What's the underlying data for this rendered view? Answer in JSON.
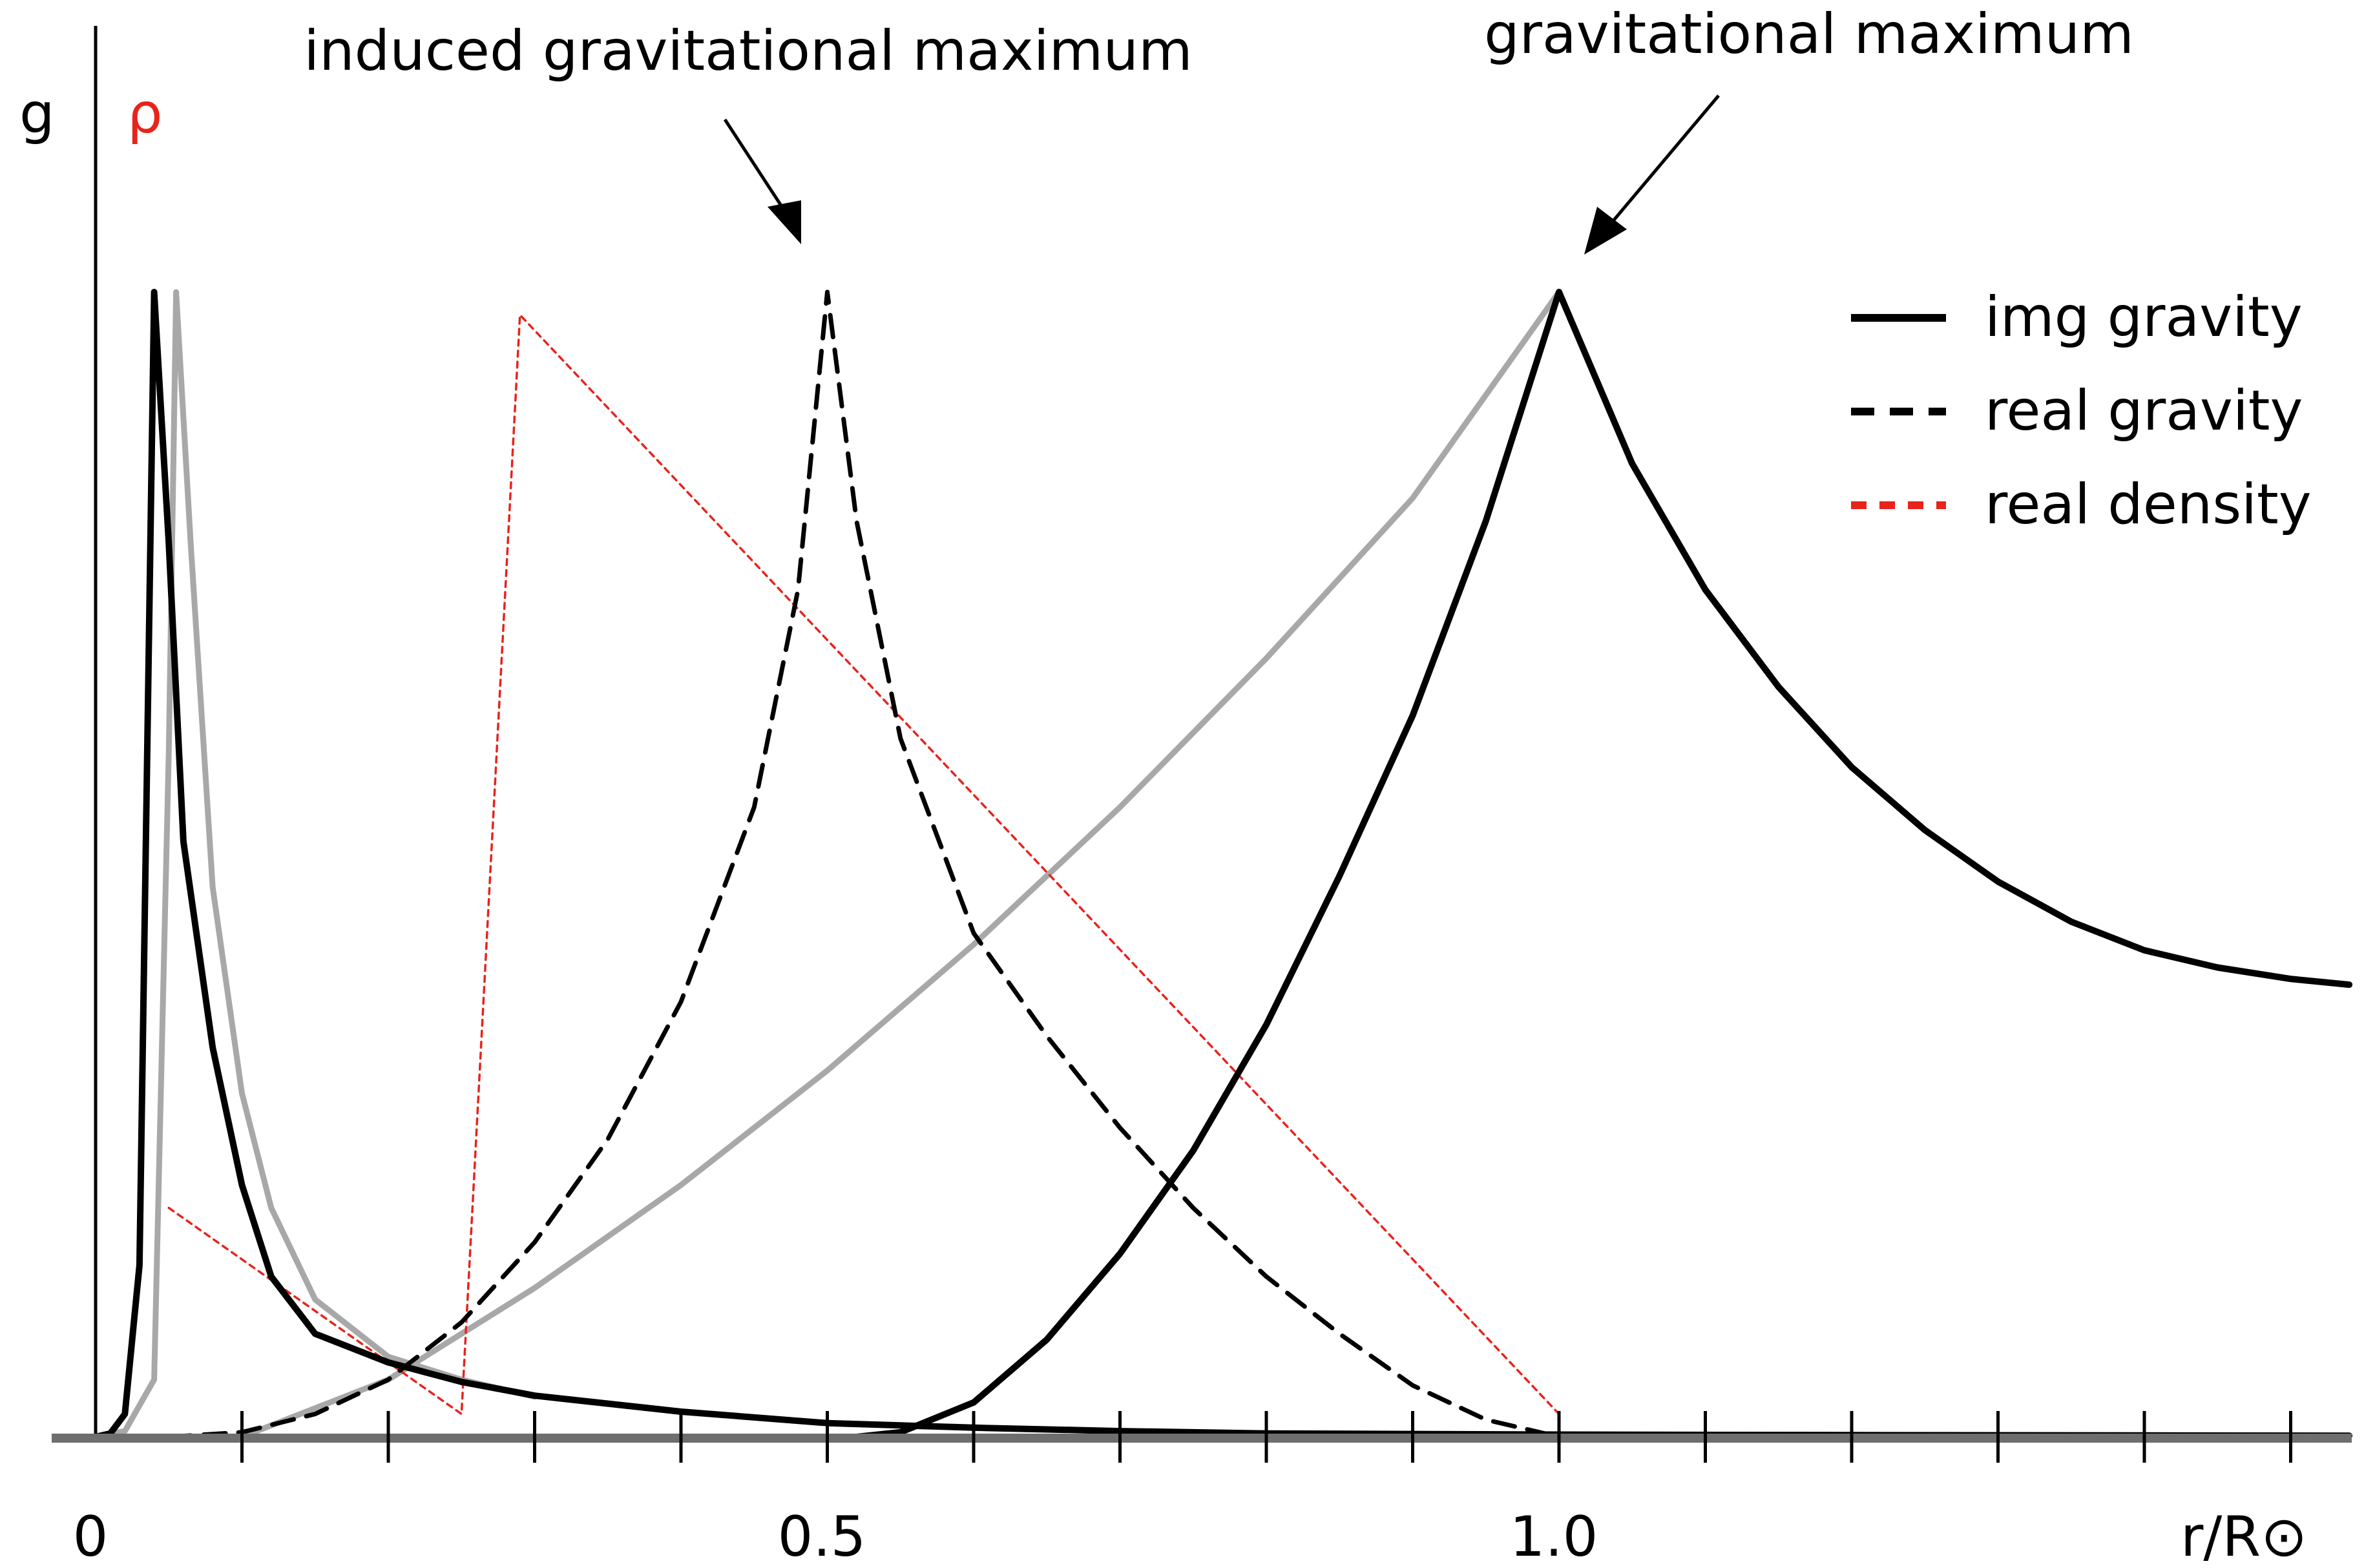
{
  "chart_data": {
    "type": "line",
    "y_axis_labels": [
      {
        "text": "g",
        "color": "#000000"
      },
      {
        "text": "ρ",
        "color": "#e8231c"
      }
    ],
    "x_axis": {
      "label": "r/R⊙",
      "range": [
        0,
        1.55
      ],
      "tick_step": 0.1,
      "tick_labels": [
        {
          "x": 0,
          "text": "0"
        },
        {
          "x": 0.5,
          "text": "0.5"
        },
        {
          "x": 1.0,
          "text": "1.0"
        }
      ]
    },
    "y_axis": {
      "range": [
        0,
        1
      ]
    },
    "grid": false,
    "legend": {
      "placement": "top-right",
      "entries": [
        {
          "label": "img gravity",
          "style": "solid",
          "color": "#000000"
        },
        {
          "label": "real gravity",
          "style": "dashed",
          "color": "#000000"
        },
        {
          "label": "real density",
          "style": "dotted",
          "color": "#e8231c"
        }
      ]
    },
    "annotations": [
      {
        "text": "induced gravitational maximum",
        "points_to": {
          "x": 0.5,
          "y": 1.0
        }
      },
      {
        "text": "gravitational maximum",
        "points_to": {
          "x": 1.0,
          "y": 1.0
        }
      }
    ],
    "series": [
      {
        "name": "img gravity",
        "color": "#000000",
        "style": "solid",
        "points": [
          [
            0.0,
            0.0
          ],
          [
            0.01,
            0.003
          ],
          [
            0.02,
            0.02
          ],
          [
            0.03,
            0.15
          ],
          [
            0.04,
            1.0
          ],
          [
            0.05,
            0.78
          ],
          [
            0.06,
            0.52
          ],
          [
            0.08,
            0.34
          ],
          [
            0.1,
            0.22
          ],
          [
            0.12,
            0.14
          ],
          [
            0.15,
            0.09
          ],
          [
            0.2,
            0.065
          ],
          [
            0.25,
            0.048
          ],
          [
            0.3,
            0.036
          ],
          [
            0.4,
            0.022
          ],
          [
            0.5,
            0.012
          ],
          [
            0.6,
            0.008
          ],
          [
            0.7,
            0.005
          ],
          [
            0.8,
            0.003
          ],
          [
            1.0,
            0.002
          ],
          [
            1.2,
            0.0015
          ],
          [
            1.54,
            0.001
          ]
        ]
      },
      {
        "name": "img gravity (exterior branch)",
        "color": "#000000",
        "style": "solid",
        "points": [
          [
            0.52,
            0.0
          ],
          [
            0.55,
            0.004
          ],
          [
            0.6,
            0.03
          ],
          [
            0.65,
            0.085
          ],
          [
            0.7,
            0.16
          ],
          [
            0.75,
            0.25
          ],
          [
            0.8,
            0.36
          ],
          [
            0.85,
            0.49
          ],
          [
            0.9,
            0.63
          ],
          [
            0.95,
            0.8
          ],
          [
            1.0,
            1.0
          ],
          [
            1.05,
            0.85
          ],
          [
            1.1,
            0.74
          ],
          [
            1.15,
            0.655
          ],
          [
            1.2,
            0.585
          ],
          [
            1.25,
            0.53
          ],
          [
            1.3,
            0.485
          ],
          [
            1.35,
            0.45
          ],
          [
            1.4,
            0.425
          ],
          [
            1.45,
            0.41
          ],
          [
            1.5,
            0.4
          ],
          [
            1.54,
            0.395
          ]
        ]
      },
      {
        "name": "real gravity",
        "color": "#000000",
        "style": "dashed",
        "points": [
          [
            0.05,
            0.0
          ],
          [
            0.1,
            0.004
          ],
          [
            0.15,
            0.02
          ],
          [
            0.2,
            0.05
          ],
          [
            0.25,
            0.1
          ],
          [
            0.3,
            0.17
          ],
          [
            0.35,
            0.26
          ],
          [
            0.4,
            0.38
          ],
          [
            0.45,
            0.55
          ],
          [
            0.48,
            0.74
          ],
          [
            0.5,
            1.0
          ],
          [
            0.52,
            0.8
          ],
          [
            0.55,
            0.61
          ],
          [
            0.6,
            0.44
          ],
          [
            0.65,
            0.35
          ],
          [
            0.7,
            0.27
          ],
          [
            0.75,
            0.2
          ],
          [
            0.8,
            0.14
          ],
          [
            0.85,
            0.09
          ],
          [
            0.9,
            0.045
          ],
          [
            0.95,
            0.015
          ],
          [
            1.0,
            0.0
          ]
        ]
      },
      {
        "name": "gray curve (core)",
        "color": "#a8a8a8",
        "style": "solid",
        "points": [
          [
            0.0,
            0.0
          ],
          [
            0.02,
            0.005
          ],
          [
            0.04,
            0.05
          ],
          [
            0.05,
            0.6
          ],
          [
            0.055,
            1.0
          ],
          [
            0.065,
            0.78
          ],
          [
            0.08,
            0.48
          ],
          [
            0.1,
            0.3
          ],
          [
            0.12,
            0.2
          ],
          [
            0.15,
            0.12
          ],
          [
            0.2,
            0.07
          ],
          [
            0.25,
            0.05
          ],
          [
            0.3,
            0.035
          ]
        ]
      },
      {
        "name": "gray curve (envelope)",
        "color": "#a8a8a8",
        "style": "solid",
        "points": [
          [
            0.1,
            0.0
          ],
          [
            0.2,
            0.05
          ],
          [
            0.3,
            0.13
          ],
          [
            0.4,
            0.22
          ],
          [
            0.5,
            0.32
          ],
          [
            0.6,
            0.43
          ],
          [
            0.7,
            0.55
          ],
          [
            0.8,
            0.68
          ],
          [
            0.9,
            0.82
          ],
          [
            1.0,
            1.0
          ]
        ]
      },
      {
        "name": "real density",
        "color": "#e8231c",
        "style": "dotted",
        "points": [
          [
            0.05,
            0.2
          ],
          [
            0.25,
            0.02
          ],
          [
            0.29,
            0.98
          ],
          [
            1.0,
            0.02
          ]
        ]
      }
    ]
  }
}
